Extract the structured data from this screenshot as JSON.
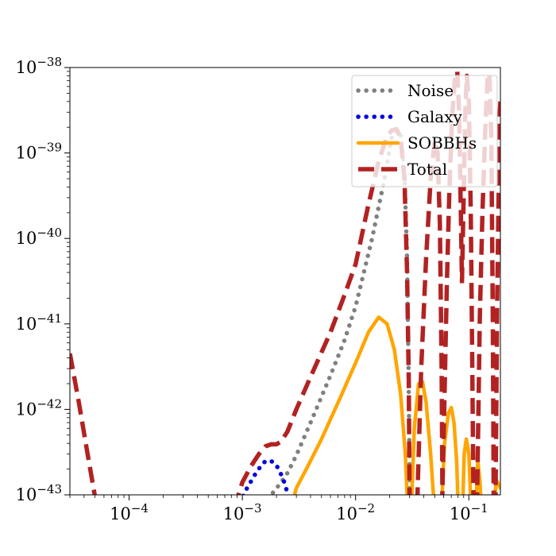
{
  "chart_data": {
    "type": "line",
    "title": "",
    "xlabel": "",
    "ylabel": "",
    "xscale": "log",
    "yscale": "log",
    "xlim": [
      3e-05,
      0.19
    ],
    "ylim": [
      1e-43,
      1e-38
    ],
    "grid": false,
    "legend_position": "top-right",
    "x_ticks": [
      {
        "value": 0.0001,
        "base": "10",
        "exp": "−4"
      },
      {
        "value": 0.001,
        "base": "10",
        "exp": "−3"
      },
      {
        "value": 0.01,
        "base": "10",
        "exp": "−2"
      },
      {
        "value": 0.1,
        "base": "10",
        "exp": "−1"
      }
    ],
    "y_ticks": [
      {
        "value": 1e-43,
        "base": "10",
        "exp": "−43"
      },
      {
        "value": 1e-42,
        "base": "10",
        "exp": "−42"
      },
      {
        "value": 1e-41,
        "base": "10",
        "exp": "−41"
      },
      {
        "value": 1e-40,
        "base": "10",
        "exp": "−40"
      },
      {
        "value": 1e-39,
        "base": "10",
        "exp": "−39"
      },
      {
        "value": 1e-38,
        "base": "10",
        "exp": "−38"
      }
    ],
    "series": [
      {
        "name": "Noise",
        "color": "#808080",
        "style": "dotted",
        "points": [
          [
            0.00115,
            6e-44
          ],
          [
            0.0015,
            7.5e-44
          ],
          [
            0.0018,
            1e-43
          ],
          [
            0.0022,
            1.4e-43
          ],
          [
            0.0025,
            1.8e-43
          ],
          [
            0.003,
            2.9e-43
          ],
          [
            0.004,
            7e-43
          ],
          [
            0.006,
            2.5e-42
          ],
          [
            0.008,
            6.5e-42
          ],
          [
            0.01,
            1.6e-41
          ],
          [
            0.014,
            1e-40
          ],
          [
            0.018,
            5e-40
          ],
          [
            0.021,
            1.6e-39
          ],
          [
            0.023,
            1.85e-39
          ],
          [
            0.025,
            1.6e-39
          ],
          [
            0.027,
            6e-40
          ],
          [
            0.0285,
            6e-41
          ],
          [
            0.0295,
            1.5e-42
          ],
          [
            0.0302,
            7e-44
          ]
        ]
      },
      {
        "name": "Galaxy",
        "color": "#0000dd",
        "style": "dotted",
        "points": [
          [
            0.00095,
            8e-44
          ],
          [
            0.0011,
            1.2e-43
          ],
          [
            0.00135,
            1.9e-43
          ],
          [
            0.00155,
            2.4e-43
          ],
          [
            0.0017,
            2.55e-43
          ],
          [
            0.0019,
            2.4e-43
          ],
          [
            0.0021,
            2e-43
          ],
          [
            0.00235,
            1.4e-43
          ],
          [
            0.0025,
            1.05e-43
          ],
          [
            0.0026,
            8e-44
          ]
        ]
      },
      {
        "name": "SOBBHs",
        "color": "#ffa500",
        "style": "solid",
        "points": [
          [
            0.00275,
            8e-44
          ],
          [
            0.003,
            1.2e-43
          ],
          [
            0.004,
            2.5e-43
          ],
          [
            0.005,
            4.5e-43
          ],
          [
            0.007,
            1.2e-42
          ],
          [
            0.01,
            3.5e-42
          ],
          [
            0.013,
            8e-42
          ],
          [
            0.016,
            1.2e-41
          ],
          [
            0.019,
            1e-41
          ],
          [
            0.022,
            5e-42
          ],
          [
            0.025,
            1.5e-42
          ],
          [
            0.0275,
            3e-43
          ],
          [
            0.029,
            6e-44
          ],
          [
            0.031,
            6e-44
          ],
          [
            0.033,
            6e-43
          ],
          [
            0.036,
            2e-42
          ],
          [
            0.039,
            2.1e-42
          ],
          [
            0.042,
            1.2e-42
          ],
          [
            0.046,
            3e-43
          ],
          [
            0.05,
            6e-44
          ],
          [
            0.057,
            6e-44
          ],
          [
            0.061,
            4e-43
          ],
          [
            0.066,
            9e-43
          ],
          [
            0.07,
            1.05e-42
          ],
          [
            0.074,
            7e-43
          ],
          [
            0.078,
            2.5e-43
          ],
          [
            0.081,
            6e-44
          ],
          [
            0.088,
            6e-44
          ],
          [
            0.091,
            3e-43
          ],
          [
            0.095,
            4.5e-43
          ],
          [
            0.1,
            3e-43
          ],
          [
            0.105,
            6e-44
          ],
          [
            0.115,
            6e-44
          ],
          [
            0.12,
            2.5e-43
          ],
          [
            0.125,
            1.5e-43
          ],
          [
            0.13,
            6e-44
          ],
          [
            0.165,
            6e-44
          ],
          [
            0.175,
            1.5e-43
          ],
          [
            0.19,
            1.2e-43
          ]
        ]
      },
      {
        "name": "Total",
        "color": "#b22222",
        "style": "dashed",
        "points": [
          [
            3e-05,
            4.5e-42
          ],
          [
            3.6e-05,
            1.2e-42
          ],
          [
            4.3e-05,
            3e-43
          ],
          [
            5.2e-05,
            7e-44
          ],
          [
            null,
            null
          ],
          [
            0.00085,
            7e-44
          ],
          [
            0.001,
            1.4e-43
          ],
          [
            0.0012,
            2.2e-43
          ],
          [
            0.0014,
            3e-43
          ],
          [
            0.0016,
            3.7e-43
          ],
          [
            0.0018,
            3.9e-43
          ],
          [
            0.002,
            3.9e-43
          ],
          [
            0.0022,
            4.2e-43
          ],
          [
            0.0025,
            5.5e-43
          ],
          [
            0.003,
            1e-42
          ],
          [
            0.004,
            2.4e-42
          ],
          [
            0.006,
            8e-42
          ],
          [
            0.008,
            2.2e-41
          ],
          [
            0.01,
            5e-41
          ],
          [
            0.013,
            2.5e-40
          ],
          [
            0.016,
            8e-40
          ],
          [
            0.019,
            1.6e-39
          ],
          [
            0.021,
            1.85e-39
          ],
          [
            0.023,
            1.9e-39
          ],
          [
            0.025,
            1.5e-39
          ],
          [
            0.027,
            5e-40
          ],
          [
            0.0285,
            4e-41
          ],
          [
            0.0295,
            2e-42
          ],
          [
            0.03,
            7e-44
          ],
          [
            null,
            null
          ],
          [
            0.035,
            8e-44
          ],
          [
            0.038,
            3e-42
          ],
          [
            0.042,
            6e-41
          ],
          [
            0.046,
            5e-40
          ],
          [
            0.05,
            1.4e-39
          ],
          [
            0.053,
            1e-39
          ],
          [
            0.0555,
            1.5e-40
          ],
          [
            0.0575,
            3e-42
          ],
          [
            0.0585,
            7e-44
          ],
          [
            null,
            null
          ],
          [
            0.058,
            7e-44
          ],
          [
            0.061,
            1.5e-42
          ],
          [
            0.064,
            3e-41
          ],
          [
            0.067,
            3e-40
          ],
          [
            0.071,
            2.5e-39
          ],
          [
            0.075,
            7e-39
          ],
          [
            0.079,
            9e-39
          ],
          [
            0.082,
            3e-39
          ],
          [
            0.085,
            2e-40
          ],
          [
            0.087,
            3e-41
          ],
          [
            null,
            null
          ],
          [
            0.087,
            3e-41
          ],
          [
            0.09,
            3e-40
          ],
          [
            0.093,
            3e-39
          ],
          [
            0.096,
            8e-39
          ],
          [
            0.1,
            4e-39
          ],
          [
            0.104,
            2e-40
          ],
          [
            0.107,
            5e-42
          ],
          [
            0.11,
            7e-44
          ],
          [
            null,
            null
          ],
          [
            0.118,
            7e-44
          ],
          [
            0.125,
            1.2e-41
          ],
          [
            0.132,
            2e-40
          ],
          [
            0.14,
            2e-39
          ],
          [
            0.147,
            8.5e-39
          ],
          [
            0.152,
            8e-39
          ],
          [
            0.158,
            1.5e-39
          ],
          [
            0.163,
            1e-41
          ],
          [
            0.166,
            7e-44
          ],
          [
            null,
            null
          ],
          [
            0.172,
            7e-44
          ],
          [
            0.178,
            2e-41
          ],
          [
            0.183,
            3e-40
          ],
          [
            0.188,
            3e-39
          ],
          [
            0.19,
            4e-39
          ]
        ]
      }
    ]
  }
}
